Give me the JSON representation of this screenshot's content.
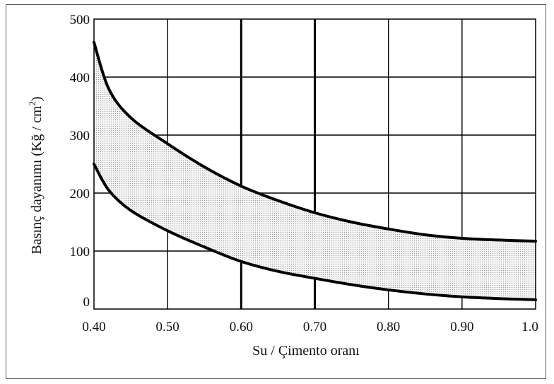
{
  "chart_data": {
    "type": "area",
    "title": "",
    "xlabel": "Su / Çimento oranı",
    "ylabel_main": "Basınç dayanımı (Kğ / cm",
    "ylabel_sup": "2",
    "ylabel_tail": ")",
    "xlim": [
      0.4,
      1.0
    ],
    "ylim": [
      0,
      500
    ],
    "x_ticks": [
      0.4,
      0.5,
      0.6,
      0.7,
      0.8,
      0.9,
      1.0
    ],
    "x_tick_labels": [
      "0.40",
      "0.50",
      "0.60",
      "0.70",
      "0.80",
      "0.90",
      "1.0"
    ],
    "y_ticks": [
      0,
      100,
      200,
      300,
      400,
      500
    ],
    "y_tick_labels": [
      "0",
      "100",
      "200",
      "300",
      "400",
      "500"
    ],
    "grid": true,
    "band_fill": "dotted gray",
    "series": [
      {
        "x": [
          0.4,
          0.42,
          0.45,
          0.5,
          0.55,
          0.6,
          0.65,
          0.7,
          0.75,
          0.8,
          0.85,
          0.9,
          0.95,
          1.0
        ],
        "values": [
          460,
          380,
          330,
          285,
          245,
          212,
          187,
          166,
          150,
          138,
          128,
          122,
          119,
          117
        ]
      },
      {
        "x": [
          0.4,
          0.42,
          0.45,
          0.5,
          0.55,
          0.6,
          0.65,
          0.7,
          0.75,
          0.8,
          0.85,
          0.9,
          0.95,
          1.0
        ],
        "values": [
          250,
          205,
          170,
          135,
          107,
          82,
          65,
          53,
          42,
          33,
          26,
          21,
          18,
          16
        ]
      }
    ]
  }
}
